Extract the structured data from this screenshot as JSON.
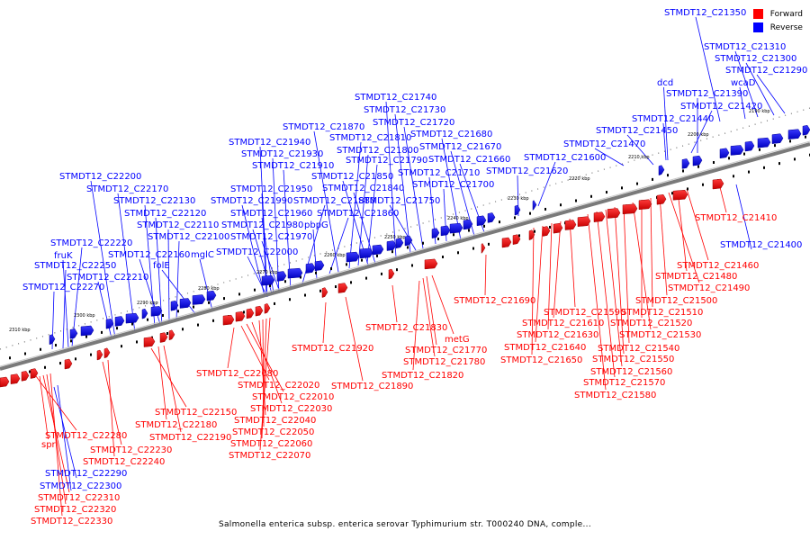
{
  "colors": {
    "forward": "#ff0000",
    "reverse": "#0000ff",
    "backbone": "#808080",
    "tick": "#000000"
  },
  "legend": {
    "forward_label": "Forward",
    "reverse_label": "Reverse"
  },
  "caption": "Salmonella enterica subsp. enterica serovar Typhimurium str. T000240 DNA, comple...",
  "ruler": [
    "2310 kbp",
    "2300 kbp",
    "2290 kbp",
    "2280 kbp",
    "2270 kbp",
    "2260 kbp",
    "2250 kbp",
    "2240 kbp",
    "2230 kbp",
    "2220 kbp",
    "2210 kbp",
    "2200 kbp",
    "2190 kbp"
  ],
  "genes": [
    {
      "label": "STMDT12_C21350",
      "strand": "reverse"
    },
    {
      "label": "STMDT12_C21310",
      "strand": "reverse"
    },
    {
      "label": "STMDT12_C21300",
      "strand": "reverse"
    },
    {
      "label": "STMDT12_C21290",
      "strand": "reverse"
    },
    {
      "label": "wcaD",
      "strand": "reverse"
    },
    {
      "label": "dcd",
      "strand": "reverse"
    },
    {
      "label": "STMDT12_C21390",
      "strand": "reverse"
    },
    {
      "label": "STMDT12_C21420",
      "strand": "reverse"
    },
    {
      "label": "STMDT12_C21440",
      "strand": "reverse"
    },
    {
      "label": "STMDT12_C21450",
      "strand": "reverse"
    },
    {
      "label": "STMDT12_C21470",
      "strand": "reverse"
    },
    {
      "label": "STMDT12_C21600",
      "strand": "reverse"
    },
    {
      "label": "STMDT12_C21620",
      "strand": "reverse"
    },
    {
      "label": "STMDT12_C21740",
      "strand": "reverse"
    },
    {
      "label": "STMDT12_C21730",
      "strand": "reverse"
    },
    {
      "label": "STMDT12_C21720",
      "strand": "reverse"
    },
    {
      "label": "STMDT12_C21680",
      "strand": "reverse"
    },
    {
      "label": "STMDT12_C21670",
      "strand": "reverse"
    },
    {
      "label": "STMDT12_C21660",
      "strand": "reverse"
    },
    {
      "label": "STMDT12_C21870",
      "strand": "reverse"
    },
    {
      "label": "STMDT12_C21810",
      "strand": "reverse"
    },
    {
      "label": "STMDT12_C21800",
      "strand": "reverse"
    },
    {
      "label": "STMDT12_C21790",
      "strand": "reverse"
    },
    {
      "label": "STMDT12_C21710",
      "strand": "reverse"
    },
    {
      "label": "STMDT12_C21700",
      "strand": "reverse"
    },
    {
      "label": "STMDT12_C21940",
      "strand": "reverse"
    },
    {
      "label": "STMDT12_C21930",
      "strand": "reverse"
    },
    {
      "label": "STMDT12_C21910",
      "strand": "reverse"
    },
    {
      "label": "STMDT12_C21850",
      "strand": "reverse"
    },
    {
      "label": "STMDT12_C21840",
      "strand": "reverse"
    },
    {
      "label": "STMDT12_C21750",
      "strand": "reverse"
    },
    {
      "label": "STMDT12_C21950",
      "strand": "reverse"
    },
    {
      "label": "STMDT12_C21880",
      "strand": "reverse"
    },
    {
      "label": "STMDT12_C21990",
      "strand": "reverse"
    },
    {
      "label": "STMDT12_C21860",
      "strand": "reverse"
    },
    {
      "label": "STMDT12_C21960",
      "strand": "reverse"
    },
    {
      "label": "STMDT12_C21980",
      "strand": "reverse"
    },
    {
      "label": "pbpG",
      "strand": "reverse"
    },
    {
      "label": "STMDT12_C21970",
      "strand": "reverse"
    },
    {
      "label": "STMDT12_C22000",
      "strand": "reverse"
    },
    {
      "label": "STMDT12_C22200",
      "strand": "reverse"
    },
    {
      "label": "STMDT12_C22170",
      "strand": "reverse"
    },
    {
      "label": "STMDT12_C22130",
      "strand": "reverse"
    },
    {
      "label": "STMDT12_C22120",
      "strand": "reverse"
    },
    {
      "label": "STMDT12_C22110",
      "strand": "reverse"
    },
    {
      "label": "STMDT12_C22100",
      "strand": "reverse"
    },
    {
      "label": "STMDT12_C22220",
      "strand": "reverse"
    },
    {
      "label": "fruK",
      "strand": "reverse"
    },
    {
      "label": "STMDT12_C22160",
      "strand": "reverse"
    },
    {
      "label": "mglC",
      "strand": "reverse"
    },
    {
      "label": "STMDT12_C22250",
      "strand": "reverse"
    },
    {
      "label": "folE",
      "strand": "reverse"
    },
    {
      "label": "STMDT12_C22210",
      "strand": "reverse"
    },
    {
      "label": "STMDT12_C22270",
      "strand": "reverse"
    },
    {
      "label": "STMDT12_C21400",
      "strand": "reverse"
    },
    {
      "label": "STMDT12_C22290",
      "strand": "reverse"
    },
    {
      "label": "STMDT12_C22300",
      "strand": "reverse"
    },
    {
      "label": "STMDT12_C21410",
      "strand": "forward"
    },
    {
      "label": "STMDT12_C21460",
      "strand": "forward"
    },
    {
      "label": "STMDT12_C21480",
      "strand": "forward"
    },
    {
      "label": "STMDT12_C21490",
      "strand": "forward"
    },
    {
      "label": "STMDT12_C21500",
      "strand": "forward"
    },
    {
      "label": "STMDT12_C21510",
      "strand": "forward"
    },
    {
      "label": "STMDT12_C21520",
      "strand": "forward"
    },
    {
      "label": "STMDT12_C21530",
      "strand": "forward"
    },
    {
      "label": "STMDT12_C21540",
      "strand": "forward"
    },
    {
      "label": "STMDT12_C21550",
      "strand": "forward"
    },
    {
      "label": "STMDT12_C21560",
      "strand": "forward"
    },
    {
      "label": "STMDT12_C21570",
      "strand": "forward"
    },
    {
      "label": "STMDT12_C21580",
      "strand": "forward"
    },
    {
      "label": "STMDT12_C21590",
      "strand": "forward"
    },
    {
      "label": "STMDT12_C21610",
      "strand": "forward"
    },
    {
      "label": "STMDT12_C21630",
      "strand": "forward"
    },
    {
      "label": "STMDT12_C21640",
      "strand": "forward"
    },
    {
      "label": "STMDT12_C21650",
      "strand": "forward"
    },
    {
      "label": "STMDT12_C21690",
      "strand": "forward"
    },
    {
      "label": "STMDT12_C21830",
      "strand": "forward"
    },
    {
      "label": "metG",
      "strand": "forward"
    },
    {
      "label": "STMDT12_C21770",
      "strand": "forward"
    },
    {
      "label": "STMDT12_C21780",
      "strand": "forward"
    },
    {
      "label": "STMDT12_C21820",
      "strand": "forward"
    },
    {
      "label": "STMDT12_C21920",
      "strand": "forward"
    },
    {
      "label": "STMDT12_C21890",
      "strand": "forward"
    },
    {
      "label": "STMDT12_C22080",
      "strand": "forward"
    },
    {
      "label": "STMDT12_C22020",
      "strand": "forward"
    },
    {
      "label": "STMDT12_C22010",
      "strand": "forward"
    },
    {
      "label": "STMDT12_C22030",
      "strand": "forward"
    },
    {
      "label": "STMDT12_C22040",
      "strand": "forward"
    },
    {
      "label": "STMDT12_C22050",
      "strand": "forward"
    },
    {
      "label": "STMDT12_C22060",
      "strand": "forward"
    },
    {
      "label": "STMDT12_C22070",
      "strand": "forward"
    },
    {
      "label": "STMDT12_C22150",
      "strand": "forward"
    },
    {
      "label": "STMDT12_C22180",
      "strand": "forward"
    },
    {
      "label": "STMDT12_C22190",
      "strand": "forward"
    },
    {
      "label": "STMDT12_C22230",
      "strand": "forward"
    },
    {
      "label": "STMDT12_C22240",
      "strand": "forward"
    },
    {
      "label": "STMDT12_C22280",
      "strand": "forward"
    },
    {
      "label": "spr",
      "strand": "forward"
    },
    {
      "label": "STMDT12_C22310",
      "strand": "forward"
    },
    {
      "label": "STMDT12_C22320",
      "strand": "forward"
    },
    {
      "label": "STMDT12_C22330",
      "strand": "forward"
    }
  ]
}
